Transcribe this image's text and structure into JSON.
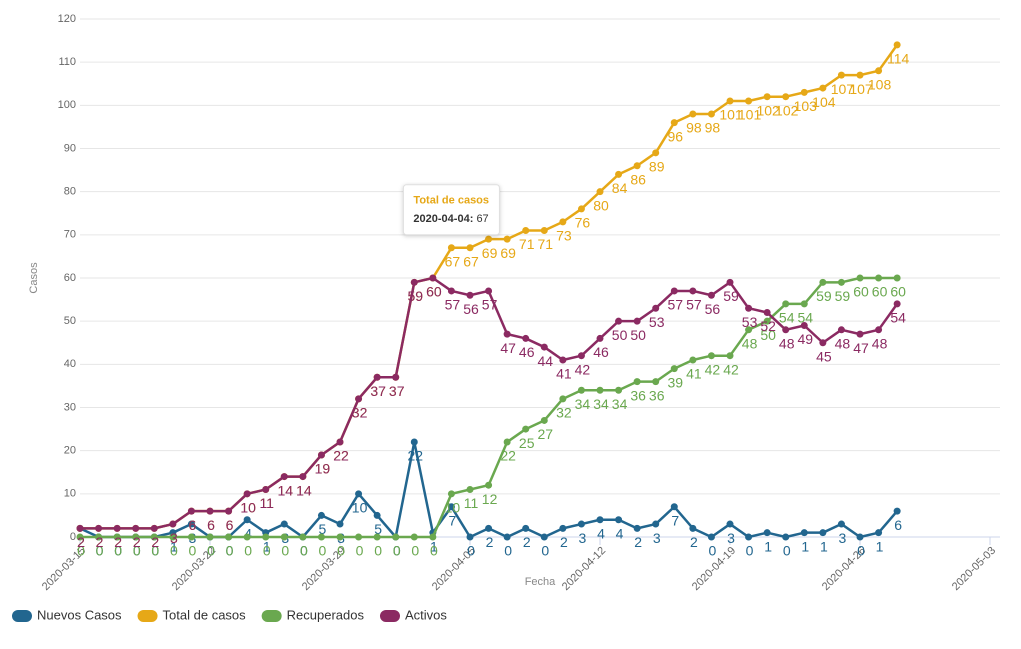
{
  "chart_data": {
    "type": "line",
    "ylabel": "Casos",
    "xlabel": "Fecha",
    "x": [
      "2020-03-15",
      "2020-03-16",
      "2020-03-17",
      "2020-03-18",
      "2020-03-19",
      "2020-03-20",
      "2020-03-21",
      "2020-03-22",
      "2020-03-23",
      "2020-03-24",
      "2020-03-25",
      "2020-03-26",
      "2020-03-27",
      "2020-03-28",
      "2020-03-29",
      "2020-03-30",
      "2020-03-31",
      "2020-04-01",
      "2020-04-02",
      "2020-04-03",
      "2020-04-04",
      "2020-04-05",
      "2020-04-06",
      "2020-04-07",
      "2020-04-08",
      "2020-04-09",
      "2020-04-10",
      "2020-04-11",
      "2020-04-12",
      "2020-04-13",
      "2020-04-14",
      "2020-04-15",
      "2020-04-16",
      "2020-04-17",
      "2020-04-18",
      "2020-04-19",
      "2020-04-20",
      "2020-04-21",
      "2020-04-22",
      "2020-04-23",
      "2020-04-24",
      "2020-04-25",
      "2020-04-26",
      "2020-04-27",
      "2020-04-28"
    ],
    "xlim": [
      "2020-03-15",
      "2020-05-03"
    ],
    "xticks": [
      "2020-03-15",
      "2020-03-22",
      "2020-03-29",
      "2020-04-05",
      "2020-04-12",
      "2020-04-19",
      "2020-04-26",
      "2020-05-03"
    ],
    "ylim": [
      0,
      120
    ],
    "yticks": [
      0,
      10,
      20,
      30,
      40,
      50,
      60,
      70,
      80,
      90,
      100,
      110,
      120
    ],
    "grid": true,
    "legend": "bottom-left",
    "series": [
      {
        "name": "Nuevos Casos",
        "color": "#22668f",
        "values": [
          2,
          0,
          0,
          0,
          0,
          1,
          3,
          0,
          0,
          4,
          1,
          3,
          0,
          5,
          3,
          10,
          5,
          0,
          22,
          1,
          7,
          0,
          2,
          0,
          2,
          0,
          2,
          3,
          4,
          4,
          2,
          3,
          7,
          2,
          0,
          3,
          0,
          1,
          0,
          1,
          1,
          3,
          0,
          1,
          6
        ]
      },
      {
        "name": "Total de casos",
        "color": "#e6a817",
        "values": [
          2,
          2,
          2,
          2,
          2,
          3,
          6,
          6,
          6,
          10,
          11,
          14,
          14,
          19,
          22,
          32,
          37,
          37,
          59,
          60,
          67,
          67,
          69,
          69,
          71,
          71,
          73,
          76,
          80,
          84,
          86,
          89,
          96,
          98,
          98,
          101,
          101,
          102,
          102,
          103,
          104,
          107,
          107,
          108,
          114
        ]
      },
      {
        "name": "Recuperados",
        "color": "#6aa84f",
        "values": [
          0,
          0,
          0,
          0,
          0,
          0,
          0,
          0,
          0,
          0,
          0,
          0,
          0,
          0,
          0,
          0,
          0,
          0,
          0,
          0,
          10,
          11,
          12,
          22,
          25,
          27,
          32,
          34,
          34,
          34,
          36,
          36,
          39,
          41,
          42,
          42,
          48,
          50,
          54,
          54,
          59,
          59,
          60,
          60,
          60
        ]
      },
      {
        "name": "Activos",
        "color": "#8b2a62",
        "values": [
          2,
          2,
          2,
          2,
          2,
          3,
          6,
          6,
          6,
          10,
          11,
          14,
          14,
          19,
          22,
          32,
          37,
          37,
          59,
          60,
          57,
          56,
          57,
          47,
          46,
          44,
          41,
          42,
          46,
          50,
          50,
          53,
          57,
          57,
          56,
          59,
          53,
          52,
          48,
          49,
          45,
          48,
          47,
          48,
          54
        ]
      }
    ],
    "tooltip": {
      "series": 1,
      "index": 20
    }
  }
}
